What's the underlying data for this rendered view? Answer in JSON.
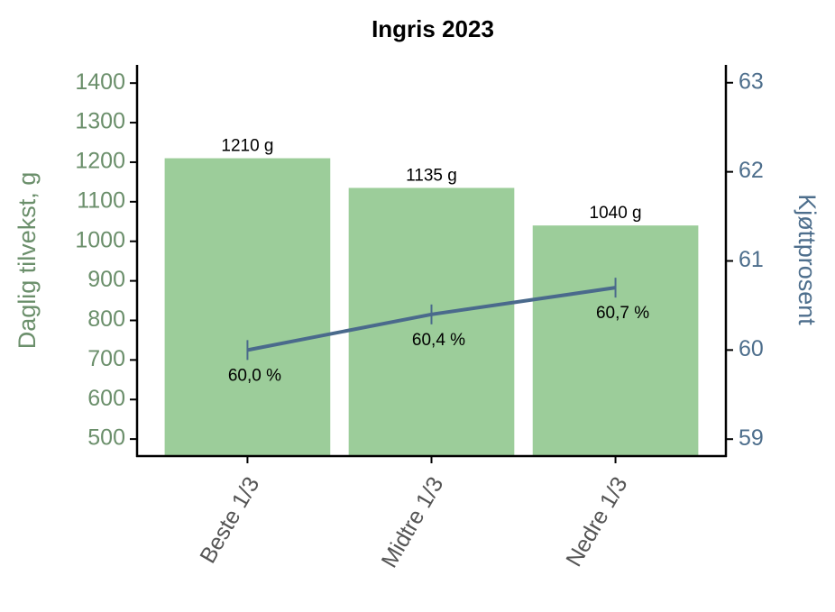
{
  "chart_data": {
    "type": "bar",
    "title": "Ingris 2023",
    "y_label": "Daglig tilvekst, g",
    "y2_label": "Kjøttprosent",
    "categories": [
      "Beste 1/3",
      "Midtre 1/3",
      "Nedre 1/3"
    ],
    "values": [
      1210,
      1135,
      1040
    ],
    "value_labels": [
      "1210 g",
      "1135 g",
      "1040 g"
    ],
    "color": "#9ccd9a",
    "line": {
      "axis": "y2",
      "color": "#4a6a8c",
      "values": [
        60.0,
        60.4,
        60.7
      ],
      "value_labels": [
        "60,0 %",
        "60,4 %",
        "60,7 %"
      ]
    },
    "ylim": [
      457,
      1446
    ],
    "yticks": [
      500,
      600,
      700,
      800,
      900,
      1000,
      1100,
      1200,
      1300,
      1400
    ],
    "y2lim": [
      58.81,
      63.2
    ],
    "y2ticks": [
      59,
      60,
      61,
      62,
      63
    ],
    "y_axis_color": "#6b8f6b",
    "y2_axis_color": "#4d6e8c",
    "grid": false
  }
}
